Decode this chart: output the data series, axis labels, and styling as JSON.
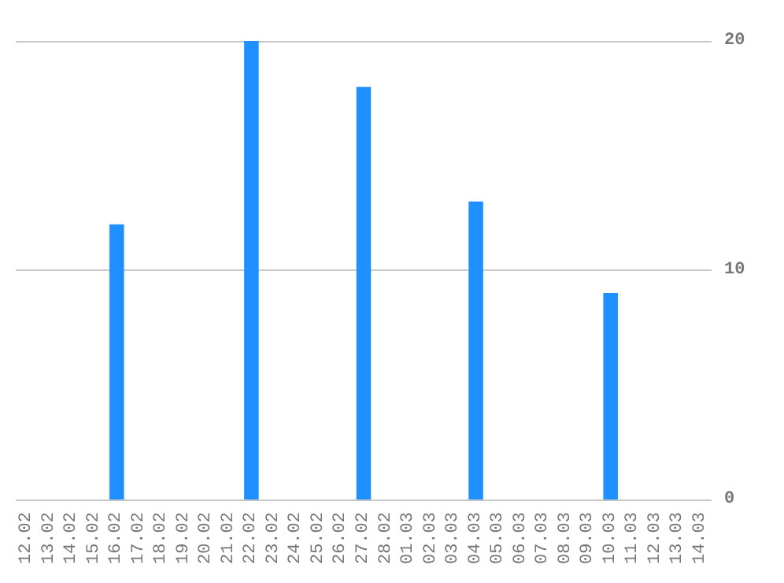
{
  "chart_data": {
    "type": "bar",
    "categories": [
      "12.02",
      "13.02",
      "14.02",
      "15.02",
      "16.02",
      "17.02",
      "18.02",
      "19.02",
      "20.02",
      "21.02",
      "22.02",
      "23.02",
      "24.02",
      "25.02",
      "26.02",
      "27.02",
      "28.02",
      "01.03",
      "02.03",
      "03.03",
      "04.03",
      "05.03",
      "06.03",
      "07.03",
      "08.03",
      "09.03",
      "10.03",
      "11.03",
      "12.03",
      "13.03",
      "14.03"
    ],
    "values": [
      0,
      0,
      0,
      0,
      12,
      0,
      0,
      0,
      0,
      0,
      20,
      0,
      0,
      0,
      0,
      18,
      0,
      0,
      0,
      0,
      13,
      0,
      0,
      0,
      0,
      0,
      9,
      0,
      0,
      0,
      0
    ],
    "color": "#1e90ff",
    "ylim": [
      0,
      20
    ],
    "yticks": [
      0,
      10,
      20
    ],
    "grid": "y"
  }
}
